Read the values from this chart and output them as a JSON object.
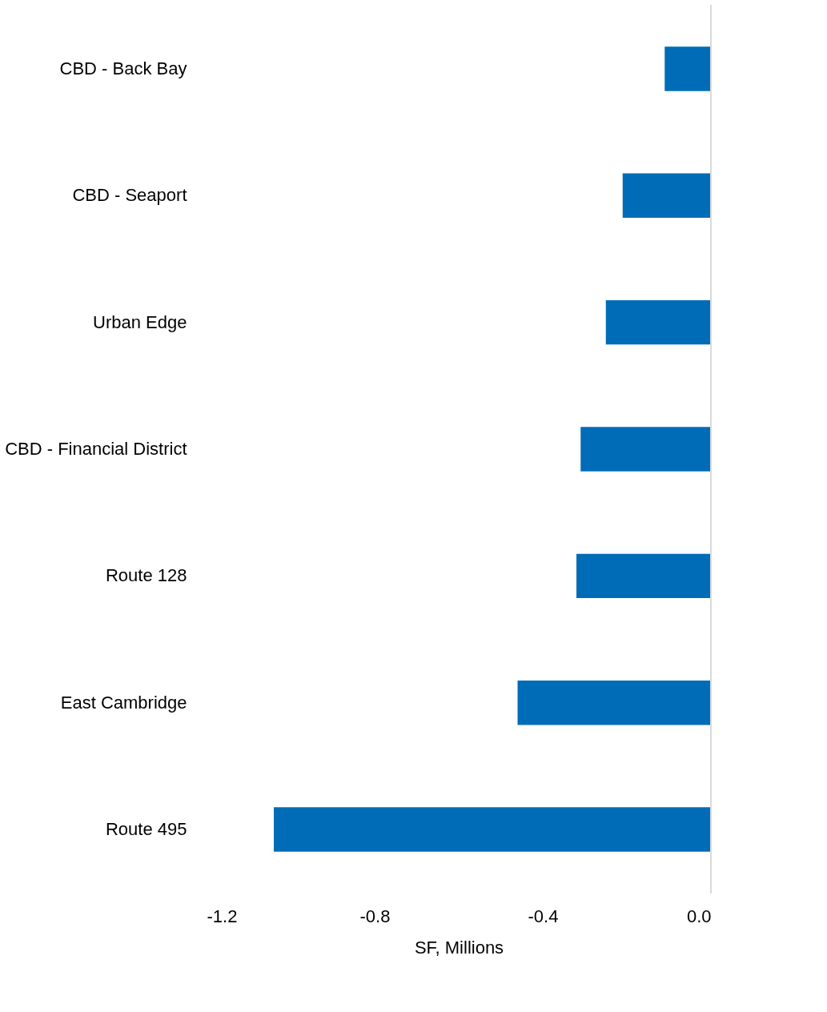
{
  "chart_data": {
    "type": "bar",
    "orientation": "horizontal",
    "xlabel": "SF, Millions",
    "categories": [
      "CBD - Back Bay",
      "CBD - Seaport",
      "Urban Edge",
      "CBD - Financial District",
      "Route 128",
      "East Cambridge",
      "Route 495"
    ],
    "values": [
      -0.11,
      -0.21,
      -0.25,
      -0.31,
      -0.32,
      -0.46,
      -1.04
    ],
    "color": "#006cb7",
    "xlim": [
      -1.2,
      0
    ],
    "xticks": [
      -1.2,
      -0.8,
      -0.4,
      {
        "value": 0,
        "label": "0.0"
      }
    ],
    "ref_lines": [
      {
        "axis": "x",
        "value": 0,
        "color": "#d9d9d9"
      }
    ],
    "grid": false
  }
}
